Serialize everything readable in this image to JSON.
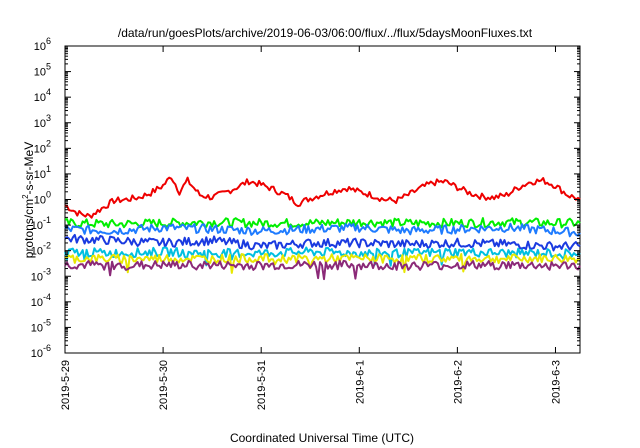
{
  "chart_data": {
    "type": "line",
    "title": "/data/run/goesPlots/archive/2019-06-03/06:00/flux/../flux/5daysMoonFluxes.txt",
    "xlabel": "Coordinated Universal Time (UTC)",
    "ylabel": {
      "base": "protons/cm",
      "sup": "2",
      "rest": "-s-sr-MeV"
    },
    "yscale": "log",
    "ylim": [
      1e-06,
      1000000.0
    ],
    "xlim": [
      "2019-05-29T00:00",
      "2019-06-03T06:00"
    ],
    "x_ticks": [
      {
        "date": "2019-05-29T00:00",
        "label": "2019-5-29"
      },
      {
        "date": "2019-05-30T00:00",
        "label": "2019-5-30"
      },
      {
        "date": "2019-05-31T00:00",
        "label": "2019-5-31"
      },
      {
        "date": "2019-06-01T00:00",
        "label": "2019-6-1"
      },
      {
        "date": "2019-06-02T00:00",
        "label": "2019-6-2"
      },
      {
        "date": "2019-06-03T00:00",
        "label": "2019-6-3"
      }
    ],
    "y_ticks": [
      {
        "exp": "6",
        "value": 1000000.0
      },
      {
        "exp": "5",
        "value": 100000.0
      },
      {
        "exp": "4",
        "value": 10000.0
      },
      {
        "exp": "3",
        "value": 1000.0
      },
      {
        "exp": "2",
        "value": 100.0
      },
      {
        "exp": "1",
        "value": 10.0
      },
      {
        "exp": "0",
        "value": 1
      },
      {
        "exp": "-1",
        "value": 0.1
      },
      {
        "exp": "-2",
        "value": 0.01
      },
      {
        "exp": "-3",
        "value": 0.001
      },
      {
        "exp": "-4",
        "value": 0.0001
      },
      {
        "exp": "-5",
        "value": 1e-05
      },
      {
        "exp": "-6",
        "value": 1e-06
      }
    ],
    "y_tick_base": "10",
    "grid": false,
    "legend": "none",
    "series": [
      {
        "color": "#ee0000",
        "points": [
          [
            "2019-05-29T00:00",
            0.6
          ],
          [
            "2019-05-29T03:00",
            0.3
          ],
          [
            "2019-05-29T06:00",
            0.22
          ],
          [
            "2019-05-29T09:00",
            0.45
          ],
          [
            "2019-05-29T12:00",
            0.9
          ],
          [
            "2019-05-29T15:00",
            1.0
          ],
          [
            "2019-05-29T18:00",
            1.2
          ],
          [
            "2019-05-29T21:00",
            1.8
          ],
          [
            "2019-05-30T00:00",
            3.5
          ],
          [
            "2019-05-30T02:00",
            8.0
          ],
          [
            "2019-05-30T04:00",
            2.0
          ],
          [
            "2019-05-30T06:00",
            5.5
          ],
          [
            "2019-05-30T09:00",
            1.5
          ],
          [
            "2019-05-30T12:00",
            1.2
          ],
          [
            "2019-05-30T15:00",
            1.8
          ],
          [
            "2019-05-30T18:00",
            3.0
          ],
          [
            "2019-05-30T21:00",
            5.2
          ],
          [
            "2019-05-31T00:00",
            3.8
          ],
          [
            "2019-05-31T03:00",
            2.5
          ],
          [
            "2019-05-31T06:00",
            1.5
          ],
          [
            "2019-05-31T09:00",
            0.7
          ],
          [
            "2019-05-31T12:00",
            1.1
          ],
          [
            "2019-05-31T15:00",
            1.6
          ],
          [
            "2019-05-31T18:00",
            2.2
          ],
          [
            "2019-05-31T21:00",
            2.8
          ],
          [
            "2019-06-01T00:00",
            2.0
          ],
          [
            "2019-06-01T03:00",
            1.5
          ],
          [
            "2019-06-01T06:00",
            1.0
          ],
          [
            "2019-06-01T09:00",
            0.9
          ],
          [
            "2019-06-01T12:00",
            1.5
          ],
          [
            "2019-06-01T15:00",
            2.8
          ],
          [
            "2019-06-01T18:00",
            4.5
          ],
          [
            "2019-06-01T21:00",
            5.0
          ],
          [
            "2019-06-02T00:00",
            3.0
          ],
          [
            "2019-06-02T03:00",
            1.8
          ],
          [
            "2019-06-02T06:00",
            1.3
          ],
          [
            "2019-06-02T09:00",
            1.2
          ],
          [
            "2019-06-02T12:00",
            1.5
          ],
          [
            "2019-06-02T15:00",
            3.0
          ],
          [
            "2019-06-02T18:00",
            5.0
          ],
          [
            "2019-06-02T21:00",
            5.5
          ],
          [
            "2019-06-03T00:00",
            3.5
          ],
          [
            "2019-06-03T03:00",
            1.5
          ],
          [
            "2019-06-03T06:00",
            1.0
          ]
        ]
      },
      {
        "color": "#00ee00",
        "points": [
          [
            "2019-05-29T00:00",
            0.12
          ],
          [
            "2019-05-29T12:00",
            0.11
          ],
          [
            "2019-05-30T00:00",
            0.12
          ],
          [
            "2019-05-30T12:00",
            0.13
          ],
          [
            "2019-05-31T00:00",
            0.12
          ],
          [
            "2019-05-31T12:00",
            0.12
          ],
          [
            "2019-06-01T00:00",
            0.13
          ],
          [
            "2019-06-01T12:00",
            0.12
          ],
          [
            "2019-06-02T00:00",
            0.12
          ],
          [
            "2019-06-02T12:00",
            0.13
          ],
          [
            "2019-06-03T00:00",
            0.12
          ],
          [
            "2019-06-03T06:00",
            0.12
          ]
        ]
      },
      {
        "color": "#1e7bff",
        "points": [
          [
            "2019-05-29T00:00",
            0.07
          ],
          [
            "2019-05-29T12:00",
            0.06
          ],
          [
            "2019-05-30T00:00",
            0.08
          ],
          [
            "2019-05-30T12:00",
            0.07
          ],
          [
            "2019-05-31T00:00",
            0.06
          ],
          [
            "2019-05-31T12:00",
            0.07
          ],
          [
            "2019-06-01T00:00",
            0.08
          ],
          [
            "2019-06-01T12:00",
            0.06
          ],
          [
            "2019-06-02T00:00",
            0.07
          ],
          [
            "2019-06-02T12:00",
            0.08
          ],
          [
            "2019-06-03T00:00",
            0.06
          ],
          [
            "2019-06-03T06:00",
            0.05
          ]
        ]
      },
      {
        "color": "#1a3ae0",
        "points": [
          [
            "2019-05-29T00:00",
            0.03
          ],
          [
            "2019-05-29T12:00",
            0.025
          ],
          [
            "2019-05-30T00:00",
            0.02
          ],
          [
            "2019-05-30T12:00",
            0.025
          ],
          [
            "2019-05-31T00:00",
            0.015
          ],
          [
            "2019-05-31T12:00",
            0.02
          ],
          [
            "2019-06-01T00:00",
            0.02
          ],
          [
            "2019-06-01T12:00",
            0.018
          ],
          [
            "2019-06-02T00:00",
            0.02
          ],
          [
            "2019-06-02T12:00",
            0.018
          ],
          [
            "2019-06-03T00:00",
            0.015
          ],
          [
            "2019-06-03T06:00",
            0.015
          ]
        ]
      },
      {
        "color": "#00bfe0",
        "points": [
          [
            "2019-05-29T00:00",
            0.009
          ],
          [
            "2019-05-29T12:00",
            0.008
          ],
          [
            "2019-05-30T00:00",
            0.009
          ],
          [
            "2019-05-30T12:00",
            0.008
          ],
          [
            "2019-05-31T00:00",
            0.008
          ],
          [
            "2019-05-31T12:00",
            0.009
          ],
          [
            "2019-06-01T00:00",
            0.008
          ],
          [
            "2019-06-01T12:00",
            0.008
          ],
          [
            "2019-06-02T00:00",
            0.009
          ],
          [
            "2019-06-02T12:00",
            0.008
          ],
          [
            "2019-06-03T00:00",
            0.008
          ],
          [
            "2019-06-03T06:00",
            0.008
          ]
        ]
      },
      {
        "color": "#e8e800",
        "points": [
          [
            "2019-05-29T00:00",
            0.005
          ],
          [
            "2019-05-29T12:00",
            0.0048
          ],
          [
            "2019-05-30T00:00",
            0.005
          ],
          [
            "2019-05-30T12:00",
            0.0048
          ],
          [
            "2019-05-31T00:00",
            0.005
          ],
          [
            "2019-05-31T12:00",
            0.0048
          ],
          [
            "2019-06-01T00:00",
            0.005
          ],
          [
            "2019-06-01T12:00",
            0.0048
          ],
          [
            "2019-06-02T00:00",
            0.005
          ],
          [
            "2019-06-02T12:00",
            0.0048
          ],
          [
            "2019-06-03T00:00",
            0.005
          ],
          [
            "2019-06-03T06:00",
            0.0048
          ]
        ]
      },
      {
        "color": "#8b2a78",
        "points": [
          [
            "2019-05-29T00:00",
            0.0028
          ],
          [
            "2019-05-29T12:00",
            0.0026
          ],
          [
            "2019-05-30T00:00",
            0.0027
          ],
          [
            "2019-05-30T12:00",
            0.0027
          ],
          [
            "2019-05-31T00:00",
            0.0026
          ],
          [
            "2019-05-31T12:00",
            0.0028
          ],
          [
            "2019-06-01T00:00",
            0.0027
          ],
          [
            "2019-06-01T12:00",
            0.0026
          ],
          [
            "2019-06-02T00:00",
            0.0027
          ],
          [
            "2019-06-02T12:00",
            0.0027
          ],
          [
            "2019-06-03T00:00",
            0.0026
          ],
          [
            "2019-06-03T06:00",
            0.0026
          ]
        ]
      }
    ]
  }
}
